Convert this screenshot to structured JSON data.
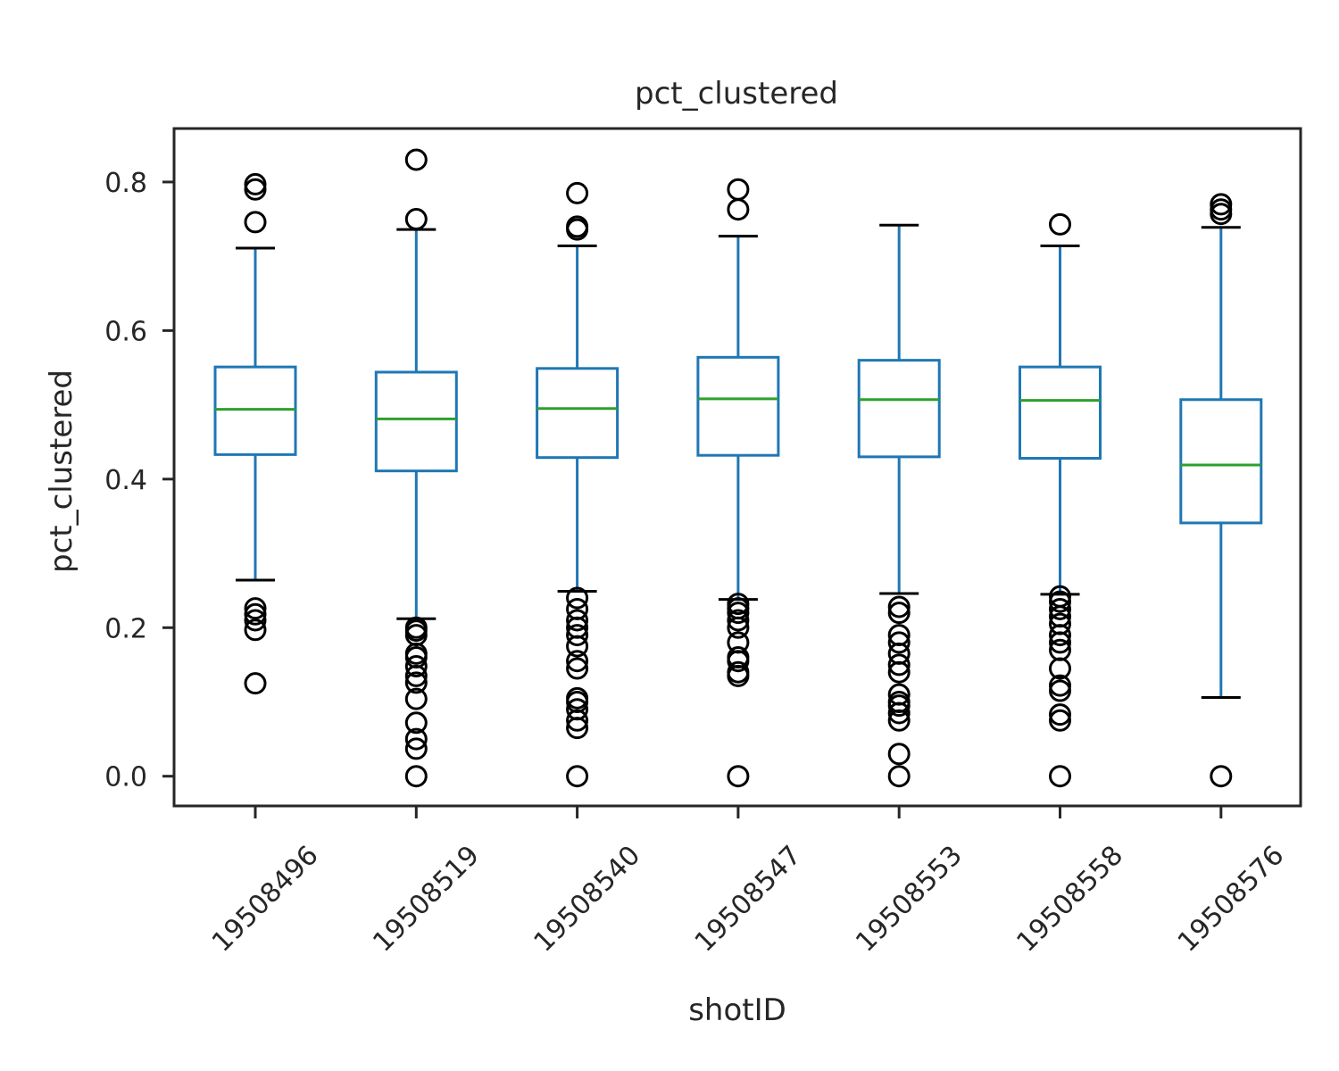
{
  "chart_data": {
    "type": "box",
    "title": "pct_clustered",
    "xlabel": "shotID",
    "ylabel": "pct_clustered",
    "ylim": [
      -0.04,
      0.872
    ],
    "yticks": [
      0.0,
      0.2,
      0.4,
      0.6,
      0.8
    ],
    "ytick_labels": [
      "0.0",
      "0.2",
      "0.4",
      "0.6",
      "0.8"
    ],
    "grid": false,
    "colors": {
      "box": "#1f77b4",
      "median": "#2ca02c",
      "caps": "#000000",
      "fliers": "#000000",
      "axes": "#262626"
    },
    "categories": [
      "19508496",
      "19508519",
      "19508540",
      "19508547",
      "19508553",
      "19508558",
      "19508576"
    ],
    "boxes": [
      {
        "category": "19508496",
        "whislo": 0.264,
        "q1": 0.433,
        "median": 0.494,
        "q3": 0.551,
        "whishi": 0.711,
        "fliers": [
          0.125,
          0.197,
          0.21,
          0.218,
          0.226,
          0.746,
          0.79,
          0.797
        ]
      },
      {
        "category": "19508519",
        "whislo": 0.212,
        "q1": 0.411,
        "median": 0.481,
        "q3": 0.544,
        "whishi": 0.736,
        "fliers": [
          0.0,
          0.037,
          0.05,
          0.072,
          0.104,
          0.126,
          0.135,
          0.148,
          0.16,
          0.165,
          0.19,
          0.196,
          0.2,
          0.75,
          0.83
        ]
      },
      {
        "category": "19508540",
        "whislo": 0.249,
        "q1": 0.429,
        "median": 0.495,
        "q3": 0.549,
        "whishi": 0.714,
        "fliers": [
          0.0,
          0.065,
          0.075,
          0.09,
          0.1,
          0.105,
          0.145,
          0.155,
          0.175,
          0.19,
          0.2,
          0.21,
          0.225,
          0.24,
          0.736,
          0.74,
          0.785
        ]
      },
      {
        "category": "19508547",
        "whislo": 0.238,
        "q1": 0.432,
        "median": 0.508,
        "q3": 0.564,
        "whishi": 0.727,
        "fliers": [
          0.0,
          0.135,
          0.14,
          0.155,
          0.16,
          0.18,
          0.2,
          0.21,
          0.22,
          0.226,
          0.232,
          0.763,
          0.79
        ]
      },
      {
        "category": "19508553",
        "whislo": 0.246,
        "q1": 0.43,
        "median": 0.507,
        "q3": 0.56,
        "whishi": 0.742,
        "fliers": [
          0.0,
          0.03,
          0.075,
          0.085,
          0.095,
          0.1,
          0.11,
          0.14,
          0.15,
          0.165,
          0.18,
          0.19,
          0.22,
          0.228
        ]
      },
      {
        "category": "19508558",
        "whislo": 0.245,
        "q1": 0.428,
        "median": 0.506,
        "q3": 0.551,
        "whishi": 0.714,
        "fliers": [
          0.0,
          0.075,
          0.083,
          0.115,
          0.122,
          0.145,
          0.17,
          0.18,
          0.19,
          0.205,
          0.215,
          0.225,
          0.235,
          0.242,
          0.743
        ]
      },
      {
        "category": "19508576",
        "whislo": 0.106,
        "q1": 0.341,
        "median": 0.419,
        "q3": 0.507,
        "whishi": 0.739,
        "fliers": [
          0.0,
          0.757,
          0.763,
          0.77
        ]
      }
    ]
  }
}
